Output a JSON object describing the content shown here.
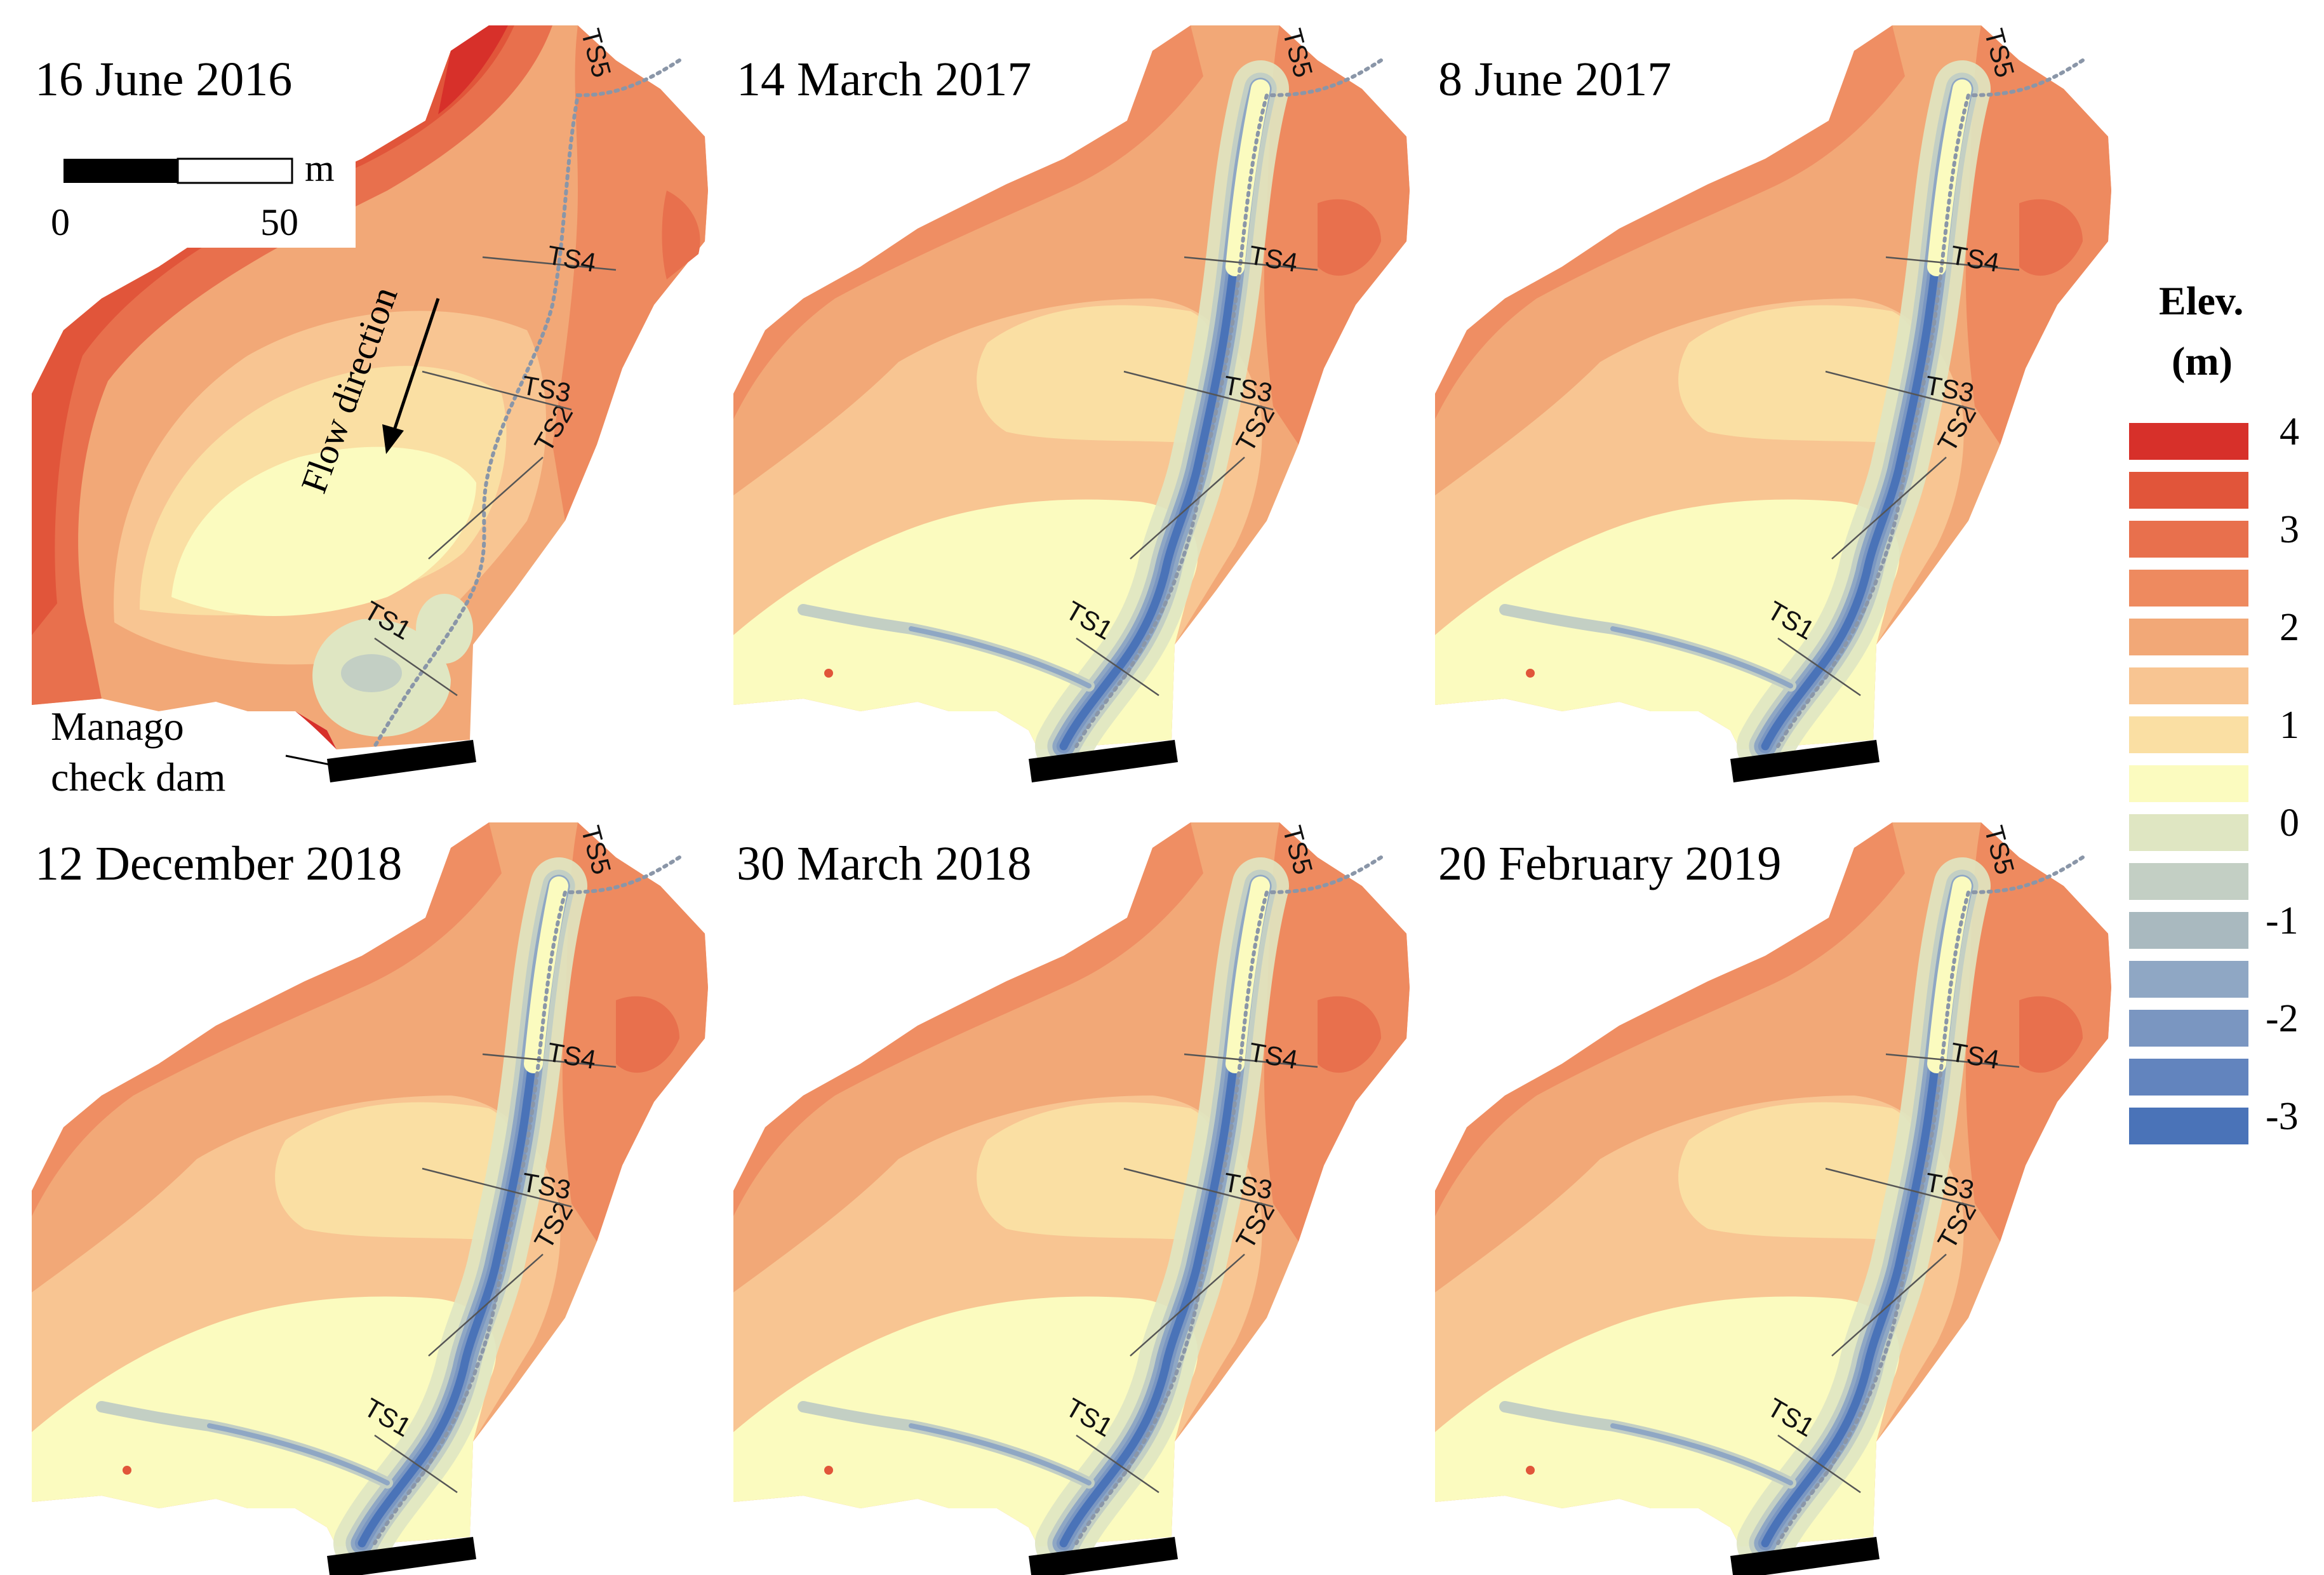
{
  "panels": [
    {
      "id": "p1",
      "title": "16 June 2016",
      "variant": "early"
    },
    {
      "id": "p2",
      "title": "14 March 2017",
      "variant": "later"
    },
    {
      "id": "p3",
      "title": "8 June 2017",
      "variant": "later"
    },
    {
      "id": "p4",
      "title": "12 December 2018",
      "variant": "later"
    },
    {
      "id": "p5",
      "title": "30 March 2018",
      "variant": "later"
    },
    {
      "id": "p6",
      "title": "20 February 2019",
      "variant": "later"
    }
  ],
  "transects": [
    "TS1",
    "TS2",
    "TS3",
    "TS4",
    "TS5"
  ],
  "scale_bar": {
    "unit": "m",
    "start": "0",
    "end": "50"
  },
  "flow_label": "Flow direction",
  "dam_label": [
    "Manago",
    "check dam"
  ],
  "legend": {
    "title_line1": "Elev.",
    "title_line2": "(m)",
    "ticks": [
      "4",
      "3",
      "2",
      "1",
      "0",
      "-1",
      "-2",
      "-3"
    ],
    "colors": [
      "#d7302a",
      "#e1553a",
      "#e8704d",
      "#ee8a5f",
      "#f2a877",
      "#f8c592",
      "#fadfa3",
      "#fbfbbf",
      "#dfe6c2",
      "#c3cfc4",
      "#a9b9bf",
      "#8fa7c4",
      "#7a96c1",
      "#6284be",
      "#4a73b8"
    ]
  }
}
